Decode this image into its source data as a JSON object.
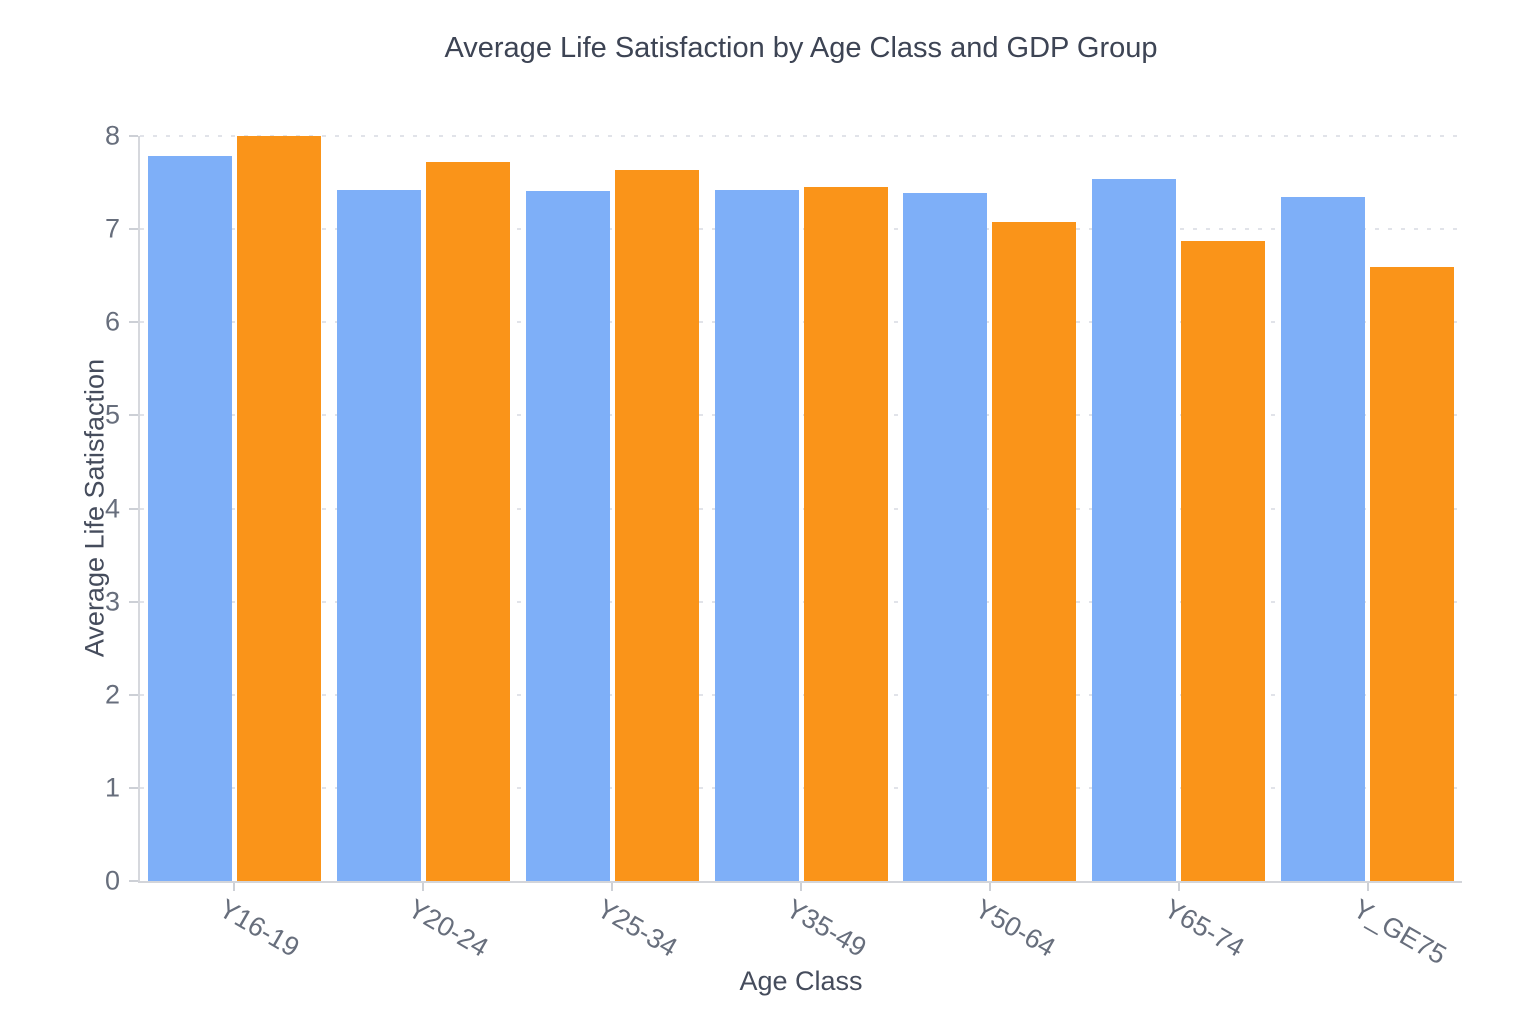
{
  "chart_data": {
    "type": "bar",
    "title": "Average Life Satisfaction by Age Class and GDP Group",
    "xlabel": "Age Class",
    "ylabel": "Average Life Satisfaction",
    "categories": [
      "Y16-19",
      "Y20-24",
      "Y25-34",
      "Y35-49",
      "Y50-64",
      "Y65-74",
      "Y_GE75"
    ],
    "series": [
      {
        "name": "blue-series",
        "color": "#7eaff8",
        "values": [
          7.79,
          7.42,
          7.41,
          7.42,
          7.39,
          7.54,
          7.34
        ]
      },
      {
        "name": "orange-series",
        "color": "#fa9419",
        "values": [
          8.0,
          7.72,
          7.63,
          7.45,
          7.08,
          6.87,
          6.59
        ]
      }
    ],
    "ylim": [
      0,
      8
    ],
    "y_ticks": [
      0,
      1,
      2,
      3,
      4,
      5,
      6,
      7,
      8
    ],
    "grid": "horizontal-dotted",
    "legend_position": "none"
  },
  "colors": {
    "background": "#ffffff",
    "title_text": "#3d4454",
    "axis_title_text": "#454c5c",
    "tick_text": "#676e7c",
    "gridline": "#e1e3e9",
    "axis_line": "#d3d5da",
    "bar_blue": "#7eaff8",
    "bar_orange": "#fa9419"
  }
}
